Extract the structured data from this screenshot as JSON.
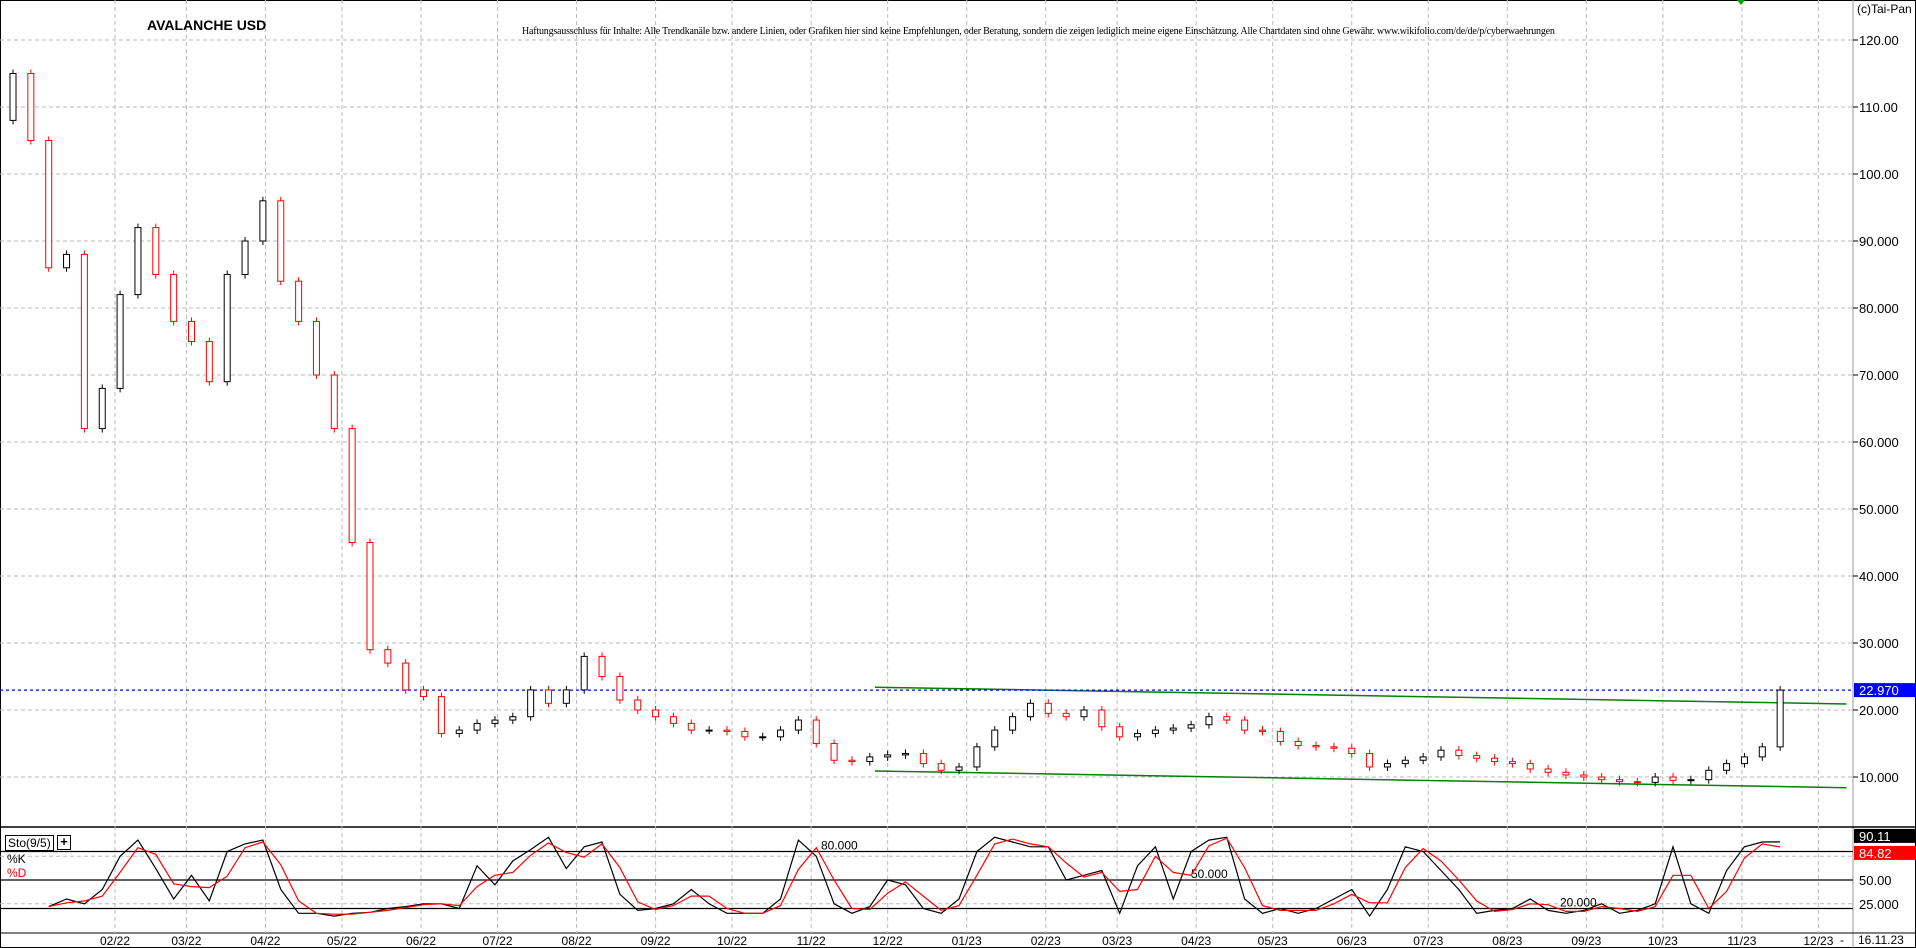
{
  "header": {
    "title": "AVALANCHE USD",
    "disclaimer": "Haftungsausschluss für Inhalte: Alle Trendkanäle bzw. andere Linien, oder Grafiken hier sind keine Empfehlungen, oder Beratung, sondern die zeigen lediglich meine eigene Einschätzung. Alle Chartdaten sind ohne Gewähr.  www.wikifolio.com/de/de/p/cyberwaehrungen",
    "copyright": "(c)Tai-Pan"
  },
  "footer": {
    "current_date": "16.11.23",
    "separator": "-"
  },
  "colors": {
    "up": "#000000",
    "down": "#ff0000",
    "trendline": "#008000",
    "last_price_line": "#0000ff",
    "k_line": "#000000",
    "d_line": "#ff0000"
  },
  "chart_data": [
    {
      "type": "candlestick",
      "title": "AVALANCHE USD",
      "ylim": [
        0,
        125
      ],
      "grid": true,
      "y_ticks": [
        "120.00",
        "110.00",
        "100.00",
        "90.000",
        "80.000",
        "70.000",
        "60.000",
        "50.000",
        "40.000",
        "30.000",
        "20.000",
        "10.000"
      ],
      "y_tick_values": [
        120,
        110,
        100,
        90,
        80,
        70,
        60,
        50,
        40,
        30,
        20,
        10
      ],
      "x_ticks": [
        "02/22",
        "03/22",
        "04/22",
        "05/22",
        "06/22",
        "07/22",
        "08/22",
        "09/22",
        "10/22",
        "11/22",
        "12/22",
        "01/23",
        "02/23",
        "03/23",
        "04/23",
        "05/23",
        "06/23",
        "07/23",
        "08/23",
        "09/23",
        "10/23",
        "11/23",
        "12/23"
      ],
      "x_tick_dates": [
        "2022-02-01",
        "2022-03-01",
        "2022-04-01",
        "2022-05-01",
        "2022-06-01",
        "2022-07-01",
        "2022-08-01",
        "2022-09-01",
        "2022-10-01",
        "2022-11-01",
        "2022-12-01",
        "2023-01-01",
        "2023-02-01",
        "2023-03-01",
        "2023-04-01",
        "2023-05-01",
        "2023-06-01",
        "2023-07-01",
        "2023-08-01",
        "2023-09-01",
        "2023-10-01",
        "2023-11-01",
        "2023-12-01"
      ],
      "last_price": 22.97,
      "last_price_label": "22.970",
      "dates": [
        "2021-12-16",
        "2021-12-23",
        "2021-12-30",
        "2022-01-06",
        "2022-01-13",
        "2022-01-20",
        "2022-01-27",
        "2022-02-03",
        "2022-02-10",
        "2022-02-17",
        "2022-02-24",
        "2022-03-03",
        "2022-03-10",
        "2022-03-17",
        "2022-03-24",
        "2022-03-31",
        "2022-04-07",
        "2022-04-14",
        "2022-04-21",
        "2022-04-28",
        "2022-05-05",
        "2022-05-12",
        "2022-05-19",
        "2022-05-26",
        "2022-06-02",
        "2022-06-09",
        "2022-06-16",
        "2022-06-23",
        "2022-06-30",
        "2022-07-07",
        "2022-07-14",
        "2022-07-21",
        "2022-07-28",
        "2022-08-04",
        "2022-08-11",
        "2022-08-18",
        "2022-08-25",
        "2022-09-01",
        "2022-09-08",
        "2022-09-15",
        "2022-09-22",
        "2022-09-29",
        "2022-10-06",
        "2022-10-13",
        "2022-10-20",
        "2022-10-27",
        "2022-11-03",
        "2022-11-10",
        "2022-11-17",
        "2022-11-24",
        "2022-12-01",
        "2022-12-08",
        "2022-12-15",
        "2022-12-22",
        "2022-12-29",
        "2023-01-05",
        "2023-01-12",
        "2023-01-19",
        "2023-01-26",
        "2023-02-02",
        "2023-02-09",
        "2023-02-16",
        "2023-02-23",
        "2023-03-02",
        "2023-03-09",
        "2023-03-16",
        "2023-03-23",
        "2023-03-30",
        "2023-04-06",
        "2023-04-13",
        "2023-04-20",
        "2023-04-27",
        "2023-05-04",
        "2023-05-11",
        "2023-05-18",
        "2023-05-25",
        "2023-06-01",
        "2023-06-08",
        "2023-06-15",
        "2023-06-22",
        "2023-06-29",
        "2023-07-06",
        "2023-07-13",
        "2023-07-20",
        "2023-07-27",
        "2023-08-03",
        "2023-08-10",
        "2023-08-17",
        "2023-08-24",
        "2023-08-31",
        "2023-09-07",
        "2023-09-14",
        "2023-09-21",
        "2023-09-28",
        "2023-10-05",
        "2023-10-12",
        "2023-10-19",
        "2023-10-26",
        "2023-11-02",
        "2023-11-09",
        "2023-11-16"
      ],
      "close": [
        108,
        115,
        105,
        86,
        88,
        62,
        68,
        82,
        92,
        85,
        78,
        75,
        69,
        85,
        90,
        96,
        84,
        78,
        70,
        62,
        45,
        29,
        27,
        23,
        22,
        16.5,
        17,
        18,
        18.5,
        19,
        23,
        21,
        23,
        28,
        25,
        21.5,
        20,
        19,
        18,
        17,
        17,
        16.8,
        16,
        16,
        17,
        18.5,
        15,
        12.5,
        12.3,
        13,
        13.3,
        13.5,
        12,
        11,
        11.5,
        14.5,
        17,
        19,
        21,
        19.5,
        19,
        20,
        17.5,
        16,
        16.5,
        17,
        17.3,
        17.8,
        19,
        18.5,
        17,
        16.8,
        15.3,
        14.7,
        14.5,
        14.3,
        13.5,
        11.5,
        12,
        12.5,
        13,
        14,
        13.2,
        12.8,
        12.3,
        12,
        11.2,
        10.7,
        10.3,
        10,
        9.6,
        9.3,
        9.2,
        10,
        9.5,
        9.6,
        11,
        12,
        13,
        14.5,
        22.97
      ],
      "trendlines": [
        {
          "from": [
            "2022-11-26",
            23.4
          ],
          "to": [
            "2023-12-12",
            20.9
          ]
        },
        {
          "from": [
            "2022-11-26",
            10.9
          ],
          "to": [
            "2023-12-12",
            8.4
          ]
        }
      ]
    },
    {
      "type": "line",
      "title": "Sto(9/5)",
      "ylim": [
        0,
        100
      ],
      "levels": [
        80,
        50,
        20
      ],
      "level_labels": [
        "80.000",
        "50.000",
        "20.000"
      ],
      "axis_labels": [
        "50.00",
        "25.000"
      ],
      "axis_label_values": [
        50,
        25
      ],
      "series": [
        {
          "name": "%K",
          "last_label": "90.11",
          "values": [
            null,
            null,
            null,
            22,
            30,
            25,
            40,
            75,
            92,
            62,
            30,
            55,
            28,
            80,
            88,
            92,
            40,
            15,
            15,
            12,
            15,
            16,
            20,
            22,
            25,
            25,
            20,
            65,
            45,
            70,
            82,
            95,
            62,
            85,
            90,
            35,
            18,
            20,
            25,
            40,
            25,
            15,
            15,
            15,
            30,
            92,
            75,
            25,
            15,
            22,
            50,
            45,
            20,
            15,
            30,
            80,
            95,
            90,
            85,
            85,
            50,
            55,
            60,
            15,
            65,
            85,
            30,
            80,
            92,
            95,
            30,
            15,
            20,
            15,
            20,
            30,
            40,
            12,
            40,
            85,
            80,
            60,
            40,
            15,
            18,
            20,
            30,
            18,
            15,
            18,
            25,
            15,
            18,
            25,
            85,
            25,
            15,
            60,
            85,
            90,
            90.11
          ]
        },
        {
          "name": "%D",
          "last_label": "84.82",
          "values": [
            null,
            null,
            null,
            22,
            26,
            28,
            33,
            58,
            84,
            77,
            46,
            43,
            42,
            54,
            84,
            90,
            66,
            28,
            15,
            14,
            14,
            16,
            18,
            21,
            24,
            25,
            23,
            43,
            55,
            58,
            76,
            89,
            79,
            74,
            88,
            63,
            27,
            19,
            23,
            33,
            33,
            20,
            15,
            15,
            23,
            61,
            84,
            50,
            20,
            19,
            36,
            48,
            33,
            18,
            23,
            55,
            88,
            93,
            88,
            85,
            68,
            53,
            58,
            38,
            40,
            75,
            58,
            55,
            86,
            94,
            63,
            23,
            18,
            18,
            18,
            25,
            35,
            26,
            26,
            63,
            83,
            70,
            50,
            28,
            17,
            19,
            25,
            24,
            17,
            17,
            22,
            20,
            17,
            22,
            55,
            55,
            20,
            38,
            73,
            88,
            84.82
          ]
        }
      ]
    }
  ]
}
